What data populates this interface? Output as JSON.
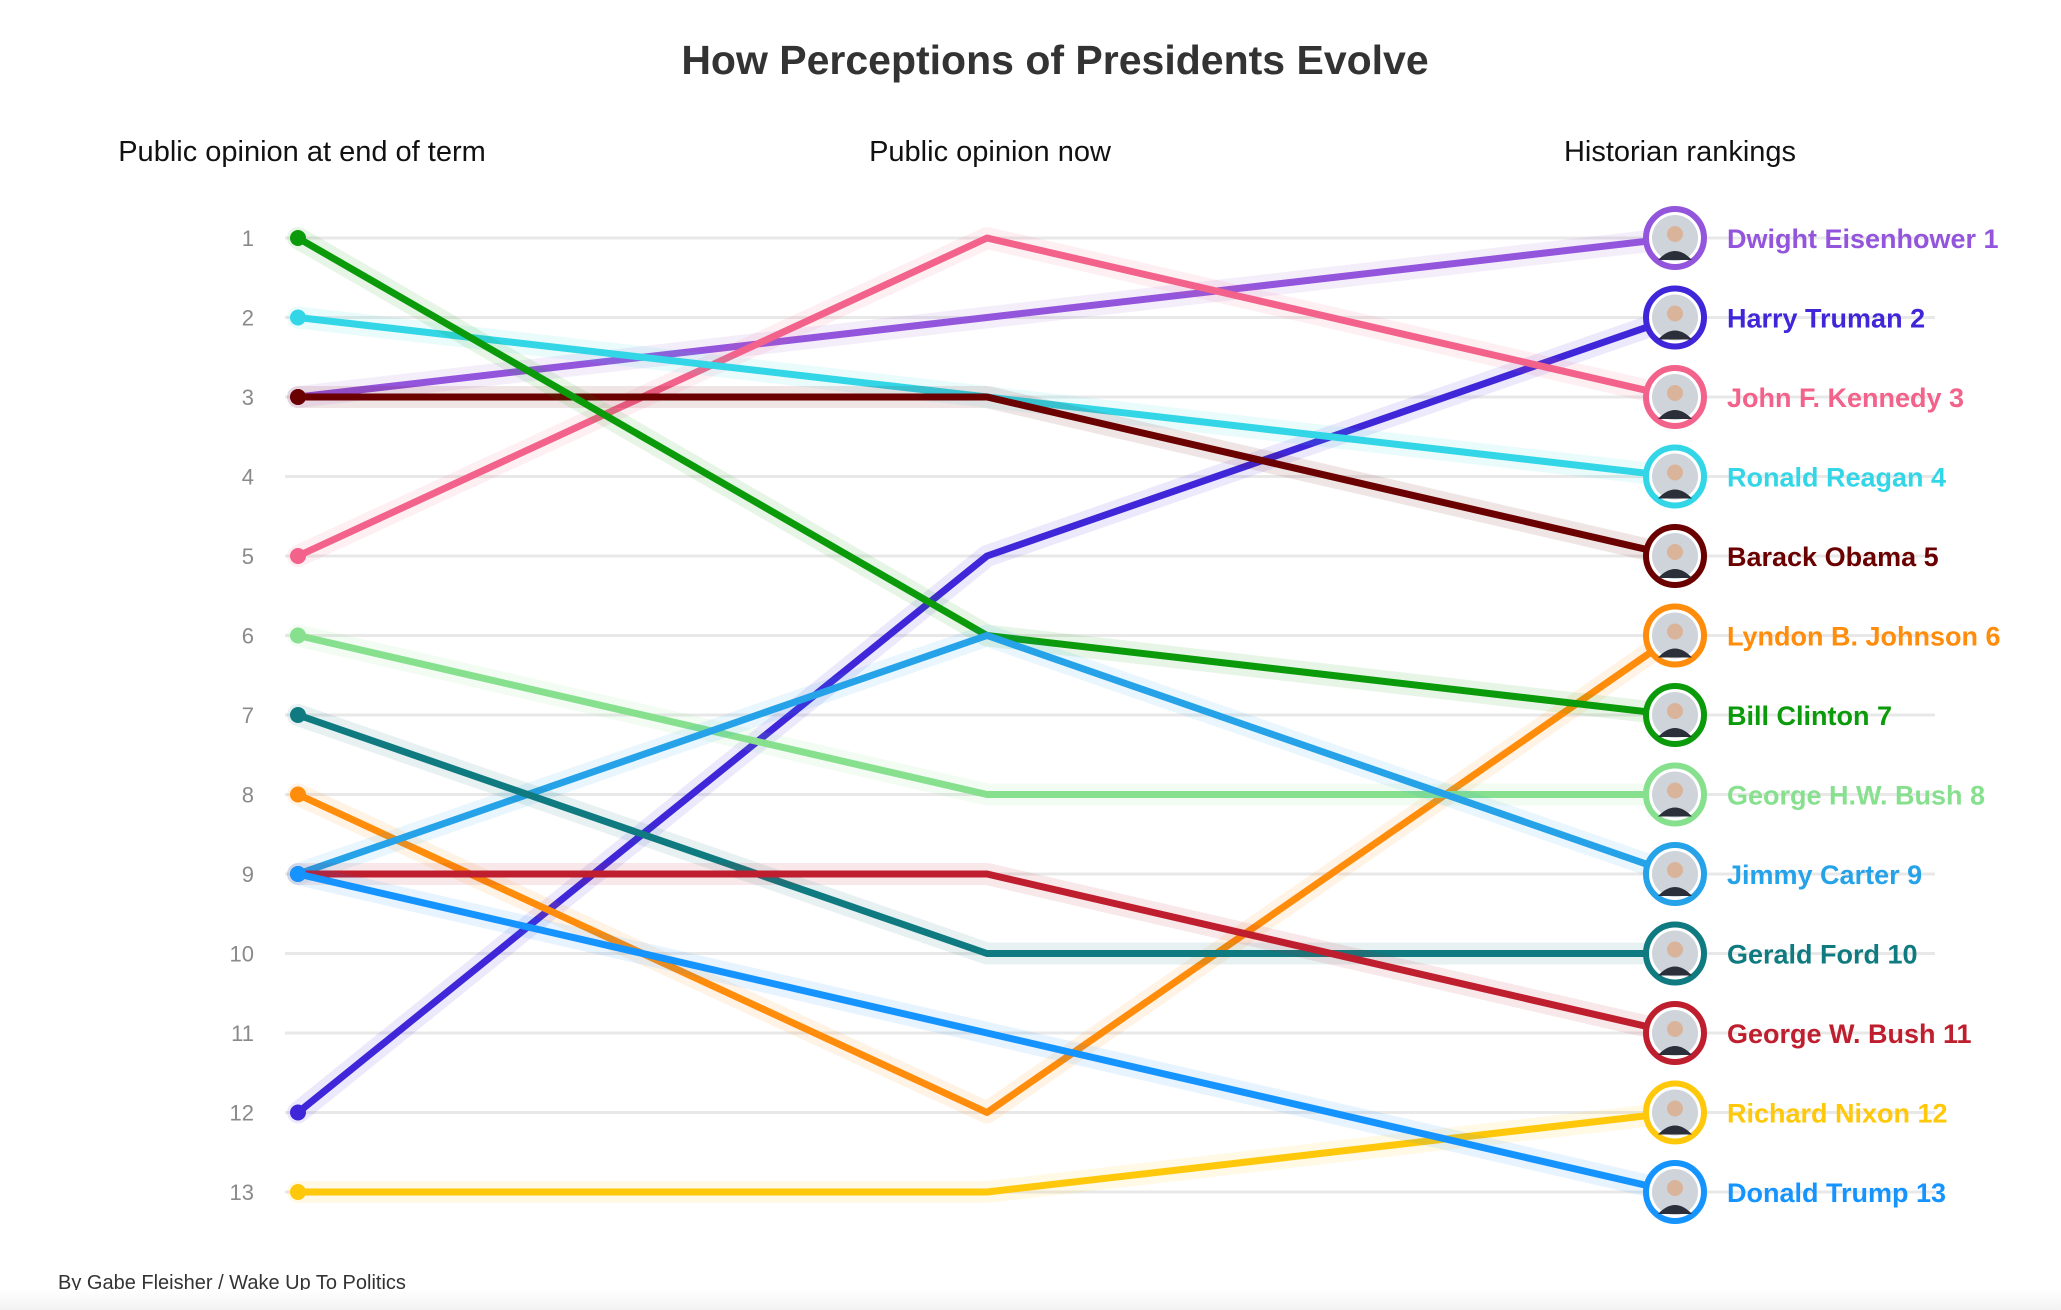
{
  "chart_data": {
    "type": "line",
    "title": "How Perceptions of Presidents Evolve",
    "x": [
      "Public opinion at end of term",
      "Public opinion now",
      "Historian rankings"
    ],
    "y_ticks": [
      "1",
      "2",
      "3",
      "4",
      "5",
      "6",
      "7",
      "8",
      "9",
      "10",
      "11",
      "12",
      "13"
    ],
    "ylim": [
      1,
      13
    ],
    "y_reversed": true,
    "grid": true,
    "series": [
      {
        "name": "Dwight Eisenhower",
        "label": "Dwight Eisenhower 1",
        "color": "#9355dc",
        "values": [
          3,
          2,
          1
        ]
      },
      {
        "name": "Harry Truman",
        "label": "Harry Truman 2",
        "color": "#3f26d9",
        "values": [
          12,
          5,
          2
        ]
      },
      {
        "name": "John F. Kennedy",
        "label": "John F. Kennedy 3",
        "color": "#f2628a",
        "values": [
          5,
          1,
          3
        ]
      },
      {
        "name": "Ronald Reagan",
        "label": "Ronald Reagan 4",
        "color": "#33d6e6",
        "values": [
          2,
          3,
          4
        ]
      },
      {
        "name": "Barack Obama",
        "label": "Barack Obama 5",
        "color": "#6b0000",
        "values": [
          3,
          3,
          5
        ]
      },
      {
        "name": "Lyndon B. Johnson",
        "label": "Lyndon B. Johnson 6",
        "color": "#ff8c0a",
        "values": [
          8,
          12,
          6
        ]
      },
      {
        "name": "Bill Clinton",
        "label": "Bill Clinton 7",
        "color": "#0a9a0a",
        "values": [
          1,
          6,
          7
        ]
      },
      {
        "name": "George H.W. Bush",
        "label": "George H.W. Bush 8",
        "color": "#86e08e",
        "values": [
          6,
          8,
          8
        ]
      },
      {
        "name": "Jimmy Carter",
        "label": "Jimmy Carter 9",
        "color": "#25a2e8",
        "values": [
          9,
          6,
          9
        ]
      },
      {
        "name": "Gerald Ford",
        "label": "Gerald Ford 10",
        "color": "#0f7a80",
        "values": [
          7,
          10,
          10
        ]
      },
      {
        "name": "George W. Bush",
        "label": "George W. Bush 11",
        "color": "#bf1e2e",
        "values": [
          9,
          9,
          11
        ]
      },
      {
        "name": "Richard Nixon",
        "label": "Richard Nixon 12",
        "color": "#ffc80a",
        "values": [
          13,
          13,
          12
        ]
      },
      {
        "name": "Donald Trump",
        "label": "Donald Trump 13",
        "color": "#1594ff",
        "values": [
          9,
          11,
          13
        ]
      }
    ]
  },
  "credit": "By Gabe Fleisher / Wake Up To Politics"
}
